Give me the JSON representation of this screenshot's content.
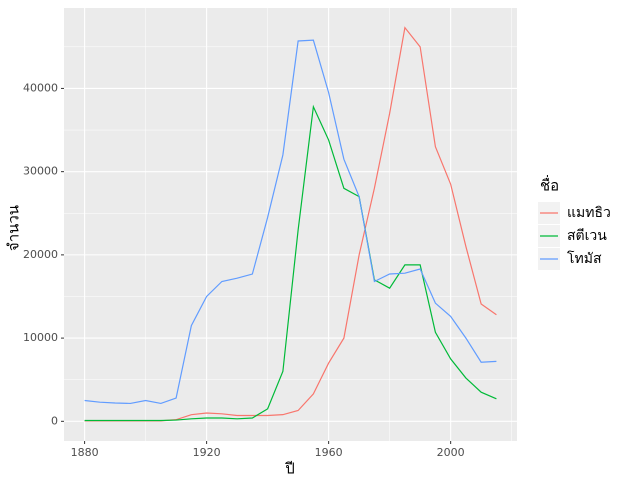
{
  "chart_data": {
    "type": "line",
    "x_label": "ปี",
    "y_label": "จำนวน",
    "legend_title": "ชื่อ",
    "x": [
      1880,
      1885,
      1890,
      1895,
      1900,
      1905,
      1910,
      1915,
      1920,
      1925,
      1930,
      1935,
      1940,
      1945,
      1950,
      1955,
      1960,
      1965,
      1970,
      1975,
      1980,
      1985,
      1990,
      1995,
      2000,
      2005,
      2010,
      2015
    ],
    "series": [
      {
        "name": "แมทธิว",
        "color": "#F8766D",
        "values": [
          50,
          50,
          50,
          50,
          50,
          50,
          200,
          800,
          1000,
          900,
          700,
          700,
          700,
          800,
          1300,
          3300,
          7000,
          10000,
          20000,
          28000,
          37000,
          47300,
          45000,
          33000,
          28500,
          21000,
          14100,
          12800
        ]
      },
      {
        "name": "สตีเวน",
        "color": "#00BA38",
        "values": [
          100,
          100,
          100,
          100,
          100,
          100,
          150,
          300,
          400,
          400,
          300,
          400,
          1500,
          6000,
          23000,
          37800,
          33800,
          28000,
          27000,
          17000,
          16000,
          18800,
          18800,
          10700,
          7500,
          5200,
          3500,
          2700
        ]
      },
      {
        "name": "โทมัส",
        "color": "#619CFF",
        "values": [
          2500,
          2300,
          2200,
          2150,
          2500,
          2150,
          2800,
          11500,
          15000,
          16800,
          17200,
          17700,
          24500,
          32000,
          45700,
          45800,
          39500,
          31500,
          27000,
          16800,
          17700,
          17800,
          18300,
          14200,
          12600,
          10000,
          7100,
          7200
        ]
      }
    ],
    "xlim": [
      1873.25,
      2021.75
    ],
    "xticks": [
      1880,
      1920,
      1960,
      2000
    ],
    "ylim": [
      -2365,
      49665
    ],
    "yticks": [
      0,
      10000,
      20000,
      30000,
      40000
    ],
    "grid": true
  }
}
